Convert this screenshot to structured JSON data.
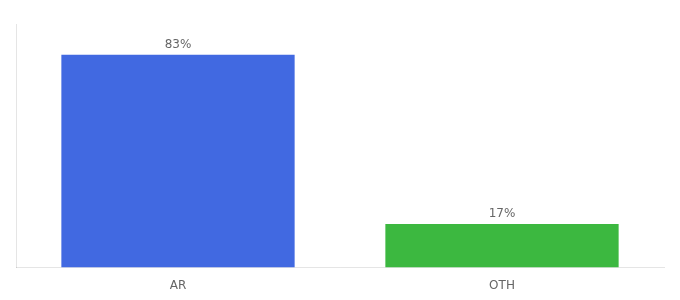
{
  "chart_data": {
    "type": "bar",
    "categories": [
      "AR",
      "OTH"
    ],
    "values": [
      83,
      17
    ],
    "value_labels": [
      "83%",
      "17%"
    ],
    "colors": [
      "#4169E1",
      "#3CB840"
    ],
    "ylim": [
      0,
      95
    ],
    "grid": false,
    "data_labels": true,
    "tick_labels": "x"
  }
}
